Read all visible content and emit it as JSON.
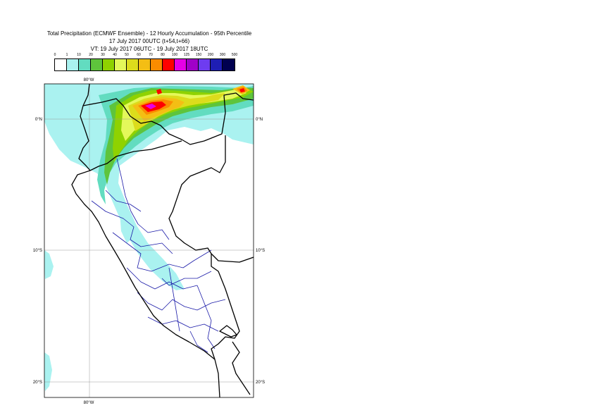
{
  "title": {
    "line1": "Total Precipitation (ECMWF Ensemble) - 12 Hourly Accumulation - 95th Percentile",
    "line2": "17 July 2017 00UTC (t+54,t+66)",
    "line3": "VT: 19 July 2017 06UTC - 19 July 2017 18UTC"
  },
  "legend": {
    "labels": [
      "0",
      "1",
      "10",
      "20",
      "30",
      "40",
      "50",
      "60",
      "70",
      "80",
      "100",
      "125",
      "150",
      "200",
      "300",
      "500"
    ],
    "colors": [
      "#ffffff",
      "#aaf2f0",
      "#62dcc0",
      "#5ec43c",
      "#8fd200",
      "#e4f85a",
      "#dcdc1c",
      "#f4be14",
      "#fa8c00",
      "#ff0000",
      "#e600e6",
      "#a000c8",
      "#6e3cf0",
      "#1e1eb4",
      "#000050"
    ]
  },
  "map": {
    "lat_labels": [
      "0°N",
      "10°S",
      "20°S"
    ],
    "lon_labels": [
      "80°W",
      "80°W"
    ]
  }
}
